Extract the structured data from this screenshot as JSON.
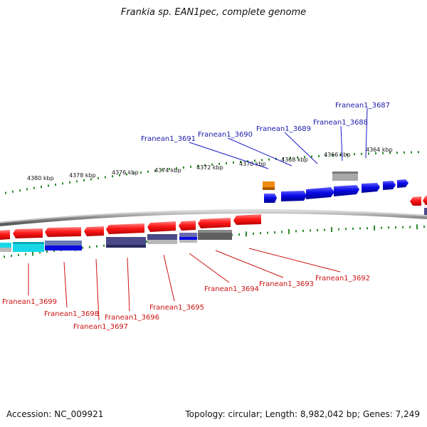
{
  "title": "Frankia sp. EAN1pec, complete genome",
  "footer": {
    "accession": "Accession: NC_009921",
    "topology": "Topology: circular; Length: 8,982,042 bp; Genes: 7,249"
  },
  "scale_ticks": [
    "4380 kbp",
    "4378 kbp",
    "4376 kbp",
    "4374 kbp",
    "4372 kbp",
    "4370 kbp",
    "4368 kbp",
    "4366 kbp",
    "4364 kbp"
  ],
  "genes_forward": [
    "Franean1_3691",
    "Franean1_3690",
    "Franean1_3689",
    "Franean1_3688",
    "Franean1_3687"
  ],
  "genes_reverse": [
    "Franean1_3699",
    "Franean1_3698",
    "Franean1_3697",
    "Franean1_3696",
    "Franean1_3695",
    "Franean1_3694",
    "Franean1_3693",
    "Franean1_3692"
  ],
  "colors": {
    "forward_label": "#1a1aaa",
    "reverse_label": "#cc1111",
    "forward_gene": "#0a0ae0",
    "reverse_gene": "#ee1111",
    "tick": "#2a8a2a",
    "backbone": "#8c8c8c",
    "cyan": "#18d8e8",
    "orange": "#f08a10",
    "gray": "#a0a0a0",
    "slate": "#4a4a88"
  }
}
